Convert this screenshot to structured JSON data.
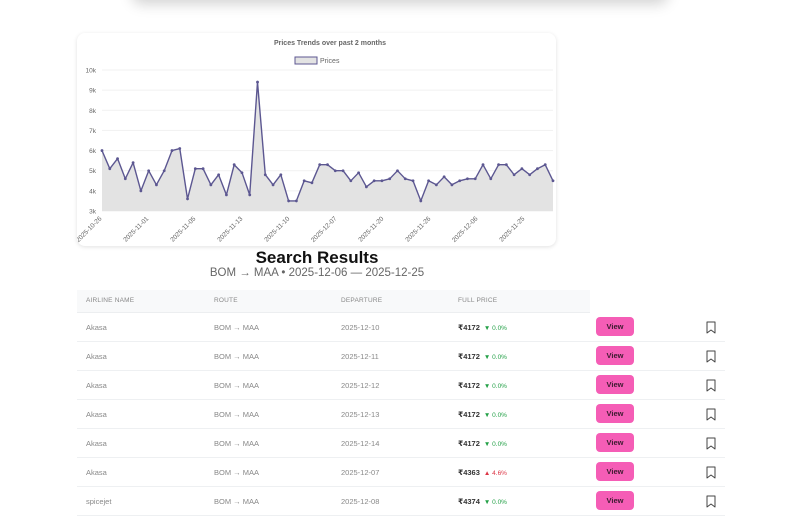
{
  "chart_data": {
    "type": "area",
    "title": "Prices Trends over past 2 months",
    "legend": [
      "Prices"
    ],
    "legend_position": "top",
    "xlabel": "",
    "ylabel": "",
    "ylim": [
      3000,
      10000
    ],
    "yticks": [
      "3k",
      "4k",
      "5k",
      "6k",
      "7k",
      "8k",
      "9k",
      "10k"
    ],
    "grid": true,
    "xtick_labels": [
      "2025-10-26",
      "2025-11-01",
      "2025-11-05",
      "2025-11-13",
      "2025-11-10",
      "2025-12-07",
      "2025-11-20",
      "2025-11-26",
      "2025-12-06",
      "2025-11-25"
    ],
    "series": [
      {
        "name": "Prices",
        "color": "#5c5791",
        "fill": "#e3e3e3",
        "values": [
          6000,
          5100,
          5600,
          4600,
          5400,
          4000,
          5000,
          4300,
          5000,
          6000,
          6100,
          3600,
          5100,
          5100,
          4300,
          4800,
          3800,
          5300,
          4900,
          3800,
          9400,
          4800,
          4300,
          4800,
          3500,
          3500,
          4500,
          4400,
          5300,
          5300,
          5000,
          5000,
          4500,
          4900,
          4200,
          4500,
          4500,
          4600,
          5000,
          4600,
          4500,
          3500,
          4500,
          4300,
          4700,
          4300,
          4500,
          4600,
          4600,
          5300,
          4600,
          5300,
          5300,
          4800,
          5100,
          4800,
          5100,
          5300,
          4500
        ]
      }
    ]
  },
  "results": {
    "title": "Search Results",
    "subtitle": "BOM → MAA • 2025-12-06 — 2025-12-25"
  },
  "table": {
    "headers": [
      "AIRLINE NAME",
      "ROUTE",
      "DEPARTURE",
      "FULL PRICE"
    ],
    "view_label": "View",
    "rows": [
      {
        "airline": "Akasa",
        "route": "BOM → MAA",
        "departure": "2025-12-10",
        "price": "₹4172",
        "delta": "▼ 0.0%",
        "direction": "down"
      },
      {
        "airline": "Akasa",
        "route": "BOM → MAA",
        "departure": "2025-12-11",
        "price": "₹4172",
        "delta": "▼ 0.0%",
        "direction": "down"
      },
      {
        "airline": "Akasa",
        "route": "BOM → MAA",
        "departure": "2025-12-12",
        "price": "₹4172",
        "delta": "▼ 0.0%",
        "direction": "down"
      },
      {
        "airline": "Akasa",
        "route": "BOM → MAA",
        "departure": "2025-12-13",
        "price": "₹4172",
        "delta": "▼ 0.0%",
        "direction": "down"
      },
      {
        "airline": "Akasa",
        "route": "BOM → MAA",
        "departure": "2025-12-14",
        "price": "₹4172",
        "delta": "▼ 0.0%",
        "direction": "down"
      },
      {
        "airline": "Akasa",
        "route": "BOM → MAA",
        "departure": "2025-12-07",
        "price": "₹4363",
        "delta": "▲ 4.6%",
        "direction": "up"
      },
      {
        "airline": "spicejet",
        "route": "BOM → MAA",
        "departure": "2025-12-08",
        "price": "₹4374",
        "delta": "▼ 0.0%",
        "direction": "down"
      }
    ]
  },
  "colors": {
    "accent_button": "#f55db6",
    "line": "#5c5791",
    "up": "#dc3545",
    "down": "#22a046"
  }
}
